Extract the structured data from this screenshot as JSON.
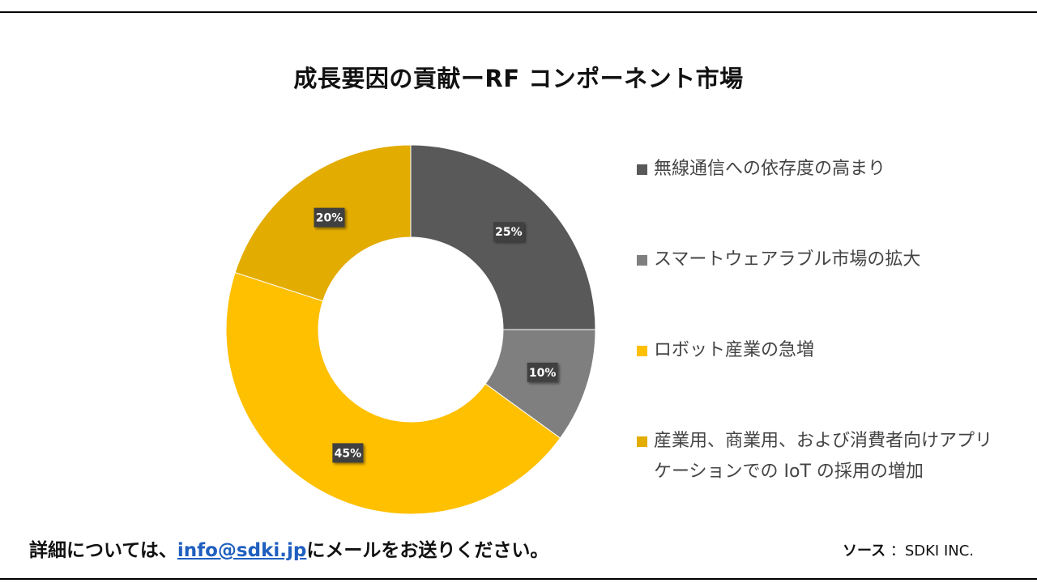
{
  "title": "成長要因の貢献ーRF コンポーネント市場",
  "chart_data": {
    "type": "pie",
    "donut": true,
    "categories": [
      "無線通信への依存度の高まり",
      "スマートウェアラブル市場の拡大",
      "ロボット産業の急増",
      "産業用、商業用、および消費者向けアプリケーションでの IoT の採用の増加"
    ],
    "values": [
      25,
      10,
      45,
      20
    ],
    "labels": [
      "25%",
      "10%",
      "45%",
      "20%"
    ],
    "colors": [
      "#595959",
      "#7f7f7f",
      "#ffc000",
      "#e3ac00"
    ],
    "legend_position": "right"
  },
  "legend": [
    {
      "label": "無線通信への依存度の高まり",
      "color": "#595959"
    },
    {
      "label": "スマートウェアラブル市場の拡大",
      "color": "#7f7f7f"
    },
    {
      "label": "ロボット産業の急増",
      "color": "#ffc000"
    },
    {
      "label": "産業用、商業用、および消費者向けアプリケーションでの IoT の採用の増加",
      "color": "#e3ac00"
    }
  ],
  "footer": {
    "prefix": "詳細については、",
    "email": "info@sdki.jp",
    "suffix": "にメールをお送りください。",
    "source_label": "ソース",
    "source_value": "：SDKI INC."
  }
}
